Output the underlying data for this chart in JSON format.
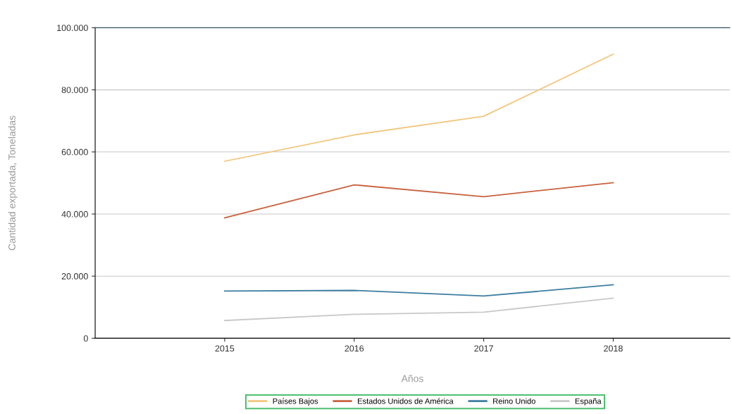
{
  "chart_data": {
    "type": "line",
    "xlabel": "Años",
    "ylabel": "Cantidad exportada, Toneladas",
    "x": [
      2015,
      2016,
      2017,
      2018
    ],
    "series": [
      {
        "name": "Países Bajos",
        "color": "#f2c77e",
        "values": [
          57000,
          65500,
          71500,
          91500
        ]
      },
      {
        "name": "Estados Unidos de América",
        "color": "#c8623f",
        "values": [
          38800,
          49400,
          45600,
          50100
        ]
      },
      {
        "name": "Reino Unido",
        "color": "#3c7ea0",
        "values": [
          15200,
          15400,
          13600,
          17200
        ]
      },
      {
        "name": "España",
        "color": "#c8c8c8",
        "values": [
          5700,
          7700,
          8400,
          12900
        ]
      }
    ],
    "xlim": [
      2014,
      2018.9
    ],
    "xticks": [
      2015,
      2016,
      2017,
      2018
    ],
    "ylim": [
      0,
      100000
    ],
    "yticks": [
      {
        "value": 0,
        "label": "0"
      },
      {
        "value": 20000,
        "label": "20.000"
      },
      {
        "value": 40000,
        "label": "40.000"
      },
      {
        "value": 60000,
        "label": "60.000"
      },
      {
        "value": 80000,
        "label": "80.000"
      },
      {
        "value": 100000,
        "label": "100.000"
      }
    ],
    "grid": "y",
    "legend": "bottom",
    "marker": "none",
    "line_style": "solid"
  }
}
